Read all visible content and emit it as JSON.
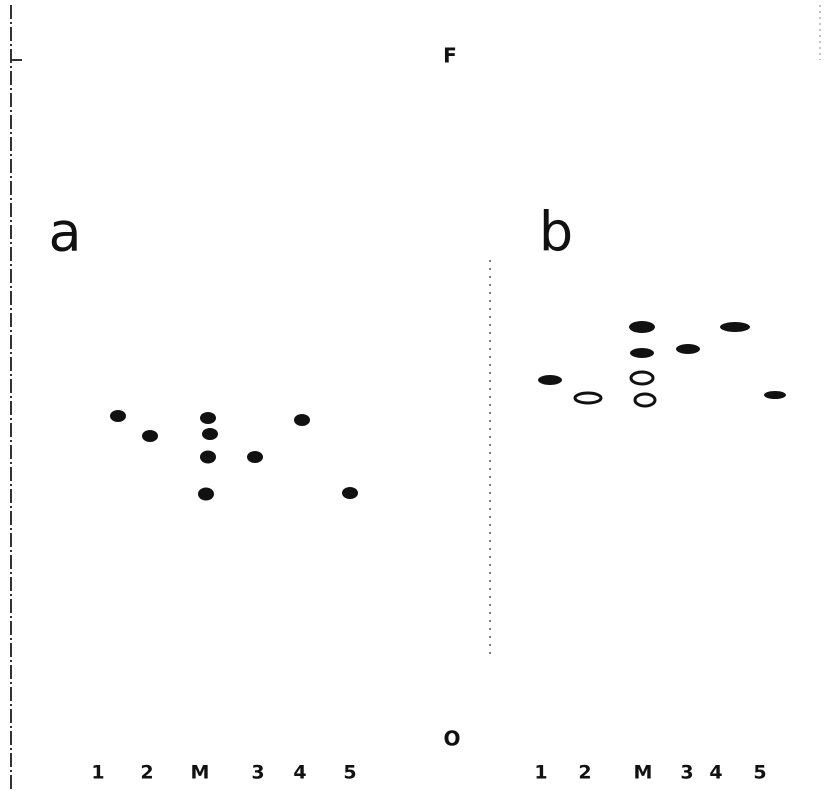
{
  "top_label": "F",
  "bottom_label": "O",
  "panels": [
    {
      "label": "a",
      "lanes": [
        "1",
        "2",
        "M",
        "3",
        "4",
        "5"
      ]
    },
    {
      "label": "b",
      "lanes": [
        "1",
        "2",
        "M",
        "3",
        "4",
        "5"
      ]
    }
  ]
}
